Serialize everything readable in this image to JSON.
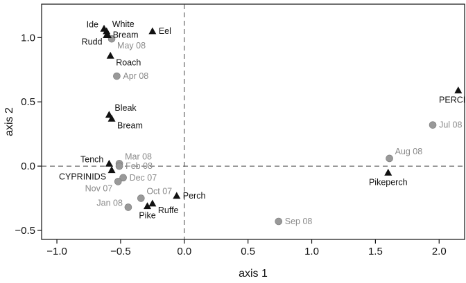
{
  "chart_data": {
    "type": "scatter",
    "title": "",
    "xlabel": "axis 1",
    "ylabel": "axis 2",
    "xlim": [
      -1.12,
      2.2
    ],
    "ylim": [
      -0.57,
      1.26
    ],
    "xticks": [
      -1.0,
      -0.5,
      0.0,
      0.5,
      1.0,
      1.5,
      2.0
    ],
    "xtick_labels": [
      "−1.0",
      "−0.5",
      "0.0",
      "0.5",
      "1.0",
      "1.5",
      "2.0"
    ],
    "yticks": [
      -0.5,
      0.0,
      0.5,
      1.0
    ],
    "ytick_labels": [
      "−0.5",
      "0.0",
      "0.5",
      "1.0"
    ],
    "grid": false,
    "reference_lines": {
      "x": 0,
      "y": 0,
      "style": "dashed"
    },
    "colors": {
      "species": "#111111",
      "samples": "#999999",
      "sample_label": "#8a8a8a",
      "species_label": "#111111"
    },
    "species": [
      {
        "name": "Ide",
        "x": -0.63,
        "y": 1.07,
        "label_pos": "left"
      },
      {
        "name": "White",
        "x": -0.61,
        "y": 1.05,
        "label_pos": "upper-right"
      },
      {
        "name": "Bream",
        "x": -0.61,
        "y": 1.02,
        "label_pos": "right"
      },
      {
        "name": "Rudd",
        "x": -0.6,
        "y": 1.02,
        "label_pos": "lower-left"
      },
      {
        "name": "Eel",
        "x": -0.25,
        "y": 1.05,
        "label_pos": "right"
      },
      {
        "name": "Roach",
        "x": -0.58,
        "y": 0.86,
        "label_pos": "lower-right"
      },
      {
        "name": "Bleak",
        "x": -0.59,
        "y": 0.4,
        "label_pos": "upper-right"
      },
      {
        "name": "Bream",
        "x": -0.57,
        "y": 0.37,
        "label_pos": "lower-right"
      },
      {
        "name": "Tench",
        "x": -0.59,
        "y": 0.02,
        "label_pos": "left"
      },
      {
        "name": "CYPRINIDS",
        "x": -0.57,
        "y": -0.03,
        "label_pos": "lower-left"
      },
      {
        "name": "Perch",
        "x": -0.06,
        "y": -0.23,
        "label_pos": "right"
      },
      {
        "name": "Ruffe",
        "x": -0.25,
        "y": -0.29,
        "label_pos": "lower-right"
      },
      {
        "name": "Pike",
        "x": -0.29,
        "y": -0.31,
        "label_pos": "below"
      },
      {
        "name": "PERCIDS",
        "x": 2.15,
        "y": 0.59,
        "label_pos": "below"
      },
      {
        "name": "Pikeperch",
        "x": 1.6,
        "y": -0.05,
        "label_pos": "below"
      }
    ],
    "samples": [
      {
        "name": "May 08",
        "x": -0.57,
        "y": 0.99,
        "label_pos": "lower-right"
      },
      {
        "name": "Apr 08",
        "x": -0.53,
        "y": 0.7,
        "label_pos": "right"
      },
      {
        "name": "Mar 08",
        "x": -0.51,
        "y": 0.02,
        "label_pos": "upper-right"
      },
      {
        "name": "Feb 08",
        "x": -0.51,
        "y": 0.0,
        "label_pos": "right"
      },
      {
        "name": "Dec 07",
        "x": -0.48,
        "y": -0.09,
        "label_pos": "right"
      },
      {
        "name": "Nov 07",
        "x": -0.52,
        "y": -0.12,
        "label_pos": "lower-left"
      },
      {
        "name": "Oct 07",
        "x": -0.34,
        "y": -0.25,
        "label_pos": "upper-right"
      },
      {
        "name": "Jan 08",
        "x": -0.44,
        "y": -0.32,
        "label_pos": "left"
      },
      {
        "name": "Sep 08",
        "x": 0.74,
        "y": -0.43,
        "label_pos": "right"
      },
      {
        "name": "Aug 08",
        "x": 1.61,
        "y": 0.06,
        "label_pos": "upper-right"
      },
      {
        "name": "Jul 08",
        "x": 1.95,
        "y": 0.32,
        "label_pos": "right"
      }
    ]
  }
}
